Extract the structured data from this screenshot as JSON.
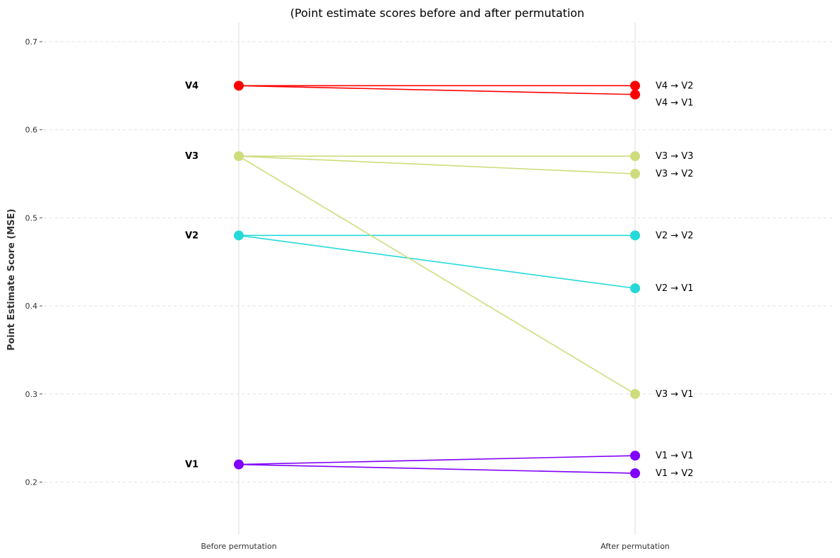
{
  "chart_data": {
    "type": "line",
    "title": "(Point estimate scores before and after permutation",
    "ylabel": "Point Estimate Score (MSE)",
    "ylim": [
      0.14,
      0.72
    ],
    "yticks": [
      0.2,
      0.3,
      0.4,
      0.5,
      0.6,
      0.7
    ],
    "ytick_labels": [
      "0.2",
      "0.3",
      "0.4",
      "0.5",
      "0.6",
      "0.7"
    ],
    "categories": [
      "Before permutation",
      "After permutation"
    ],
    "grid": "horizontal dashed",
    "groups": [
      {
        "name": "V1",
        "color": "#7f00ff",
        "before": 0.22
      },
      {
        "name": "V2",
        "color": "#26d9d9",
        "before": 0.48
      },
      {
        "name": "V3",
        "color": "#cfdc7c",
        "before": 0.57
      },
      {
        "name": "V4",
        "color": "#ff0000",
        "before": 0.65
      }
    ],
    "series": [
      {
        "name": "V1 → V1",
        "group": "V1",
        "before": 0.22,
        "after": 0.23,
        "color": "#7f00ff"
      },
      {
        "name": "V1 → V2",
        "group": "V1",
        "before": 0.22,
        "after": 0.21,
        "color": "#7f00ff"
      },
      {
        "name": "V2 → V2",
        "group": "V2",
        "before": 0.48,
        "after": 0.48,
        "color": "#26d9d9"
      },
      {
        "name": "V2 → V1",
        "group": "V2",
        "before": 0.48,
        "after": 0.42,
        "color": "#26d9d9"
      },
      {
        "name": "V3 → V3",
        "group": "V3",
        "before": 0.57,
        "after": 0.57,
        "color": "#cfdc7c"
      },
      {
        "name": "V3 → V2",
        "group": "V3",
        "before": 0.57,
        "after": 0.55,
        "color": "#cfdc7c"
      },
      {
        "name": "V3 → V1",
        "group": "V3",
        "before": 0.57,
        "after": 0.3,
        "color": "#cfdc7c"
      },
      {
        "name": "V4 → V2",
        "group": "V4",
        "before": 0.65,
        "after": 0.65,
        "color": "#ff0000"
      },
      {
        "name": "V4 → V1",
        "group": "V4",
        "before": 0.65,
        "after": 0.64,
        "color": "#ff0000"
      }
    ]
  }
}
